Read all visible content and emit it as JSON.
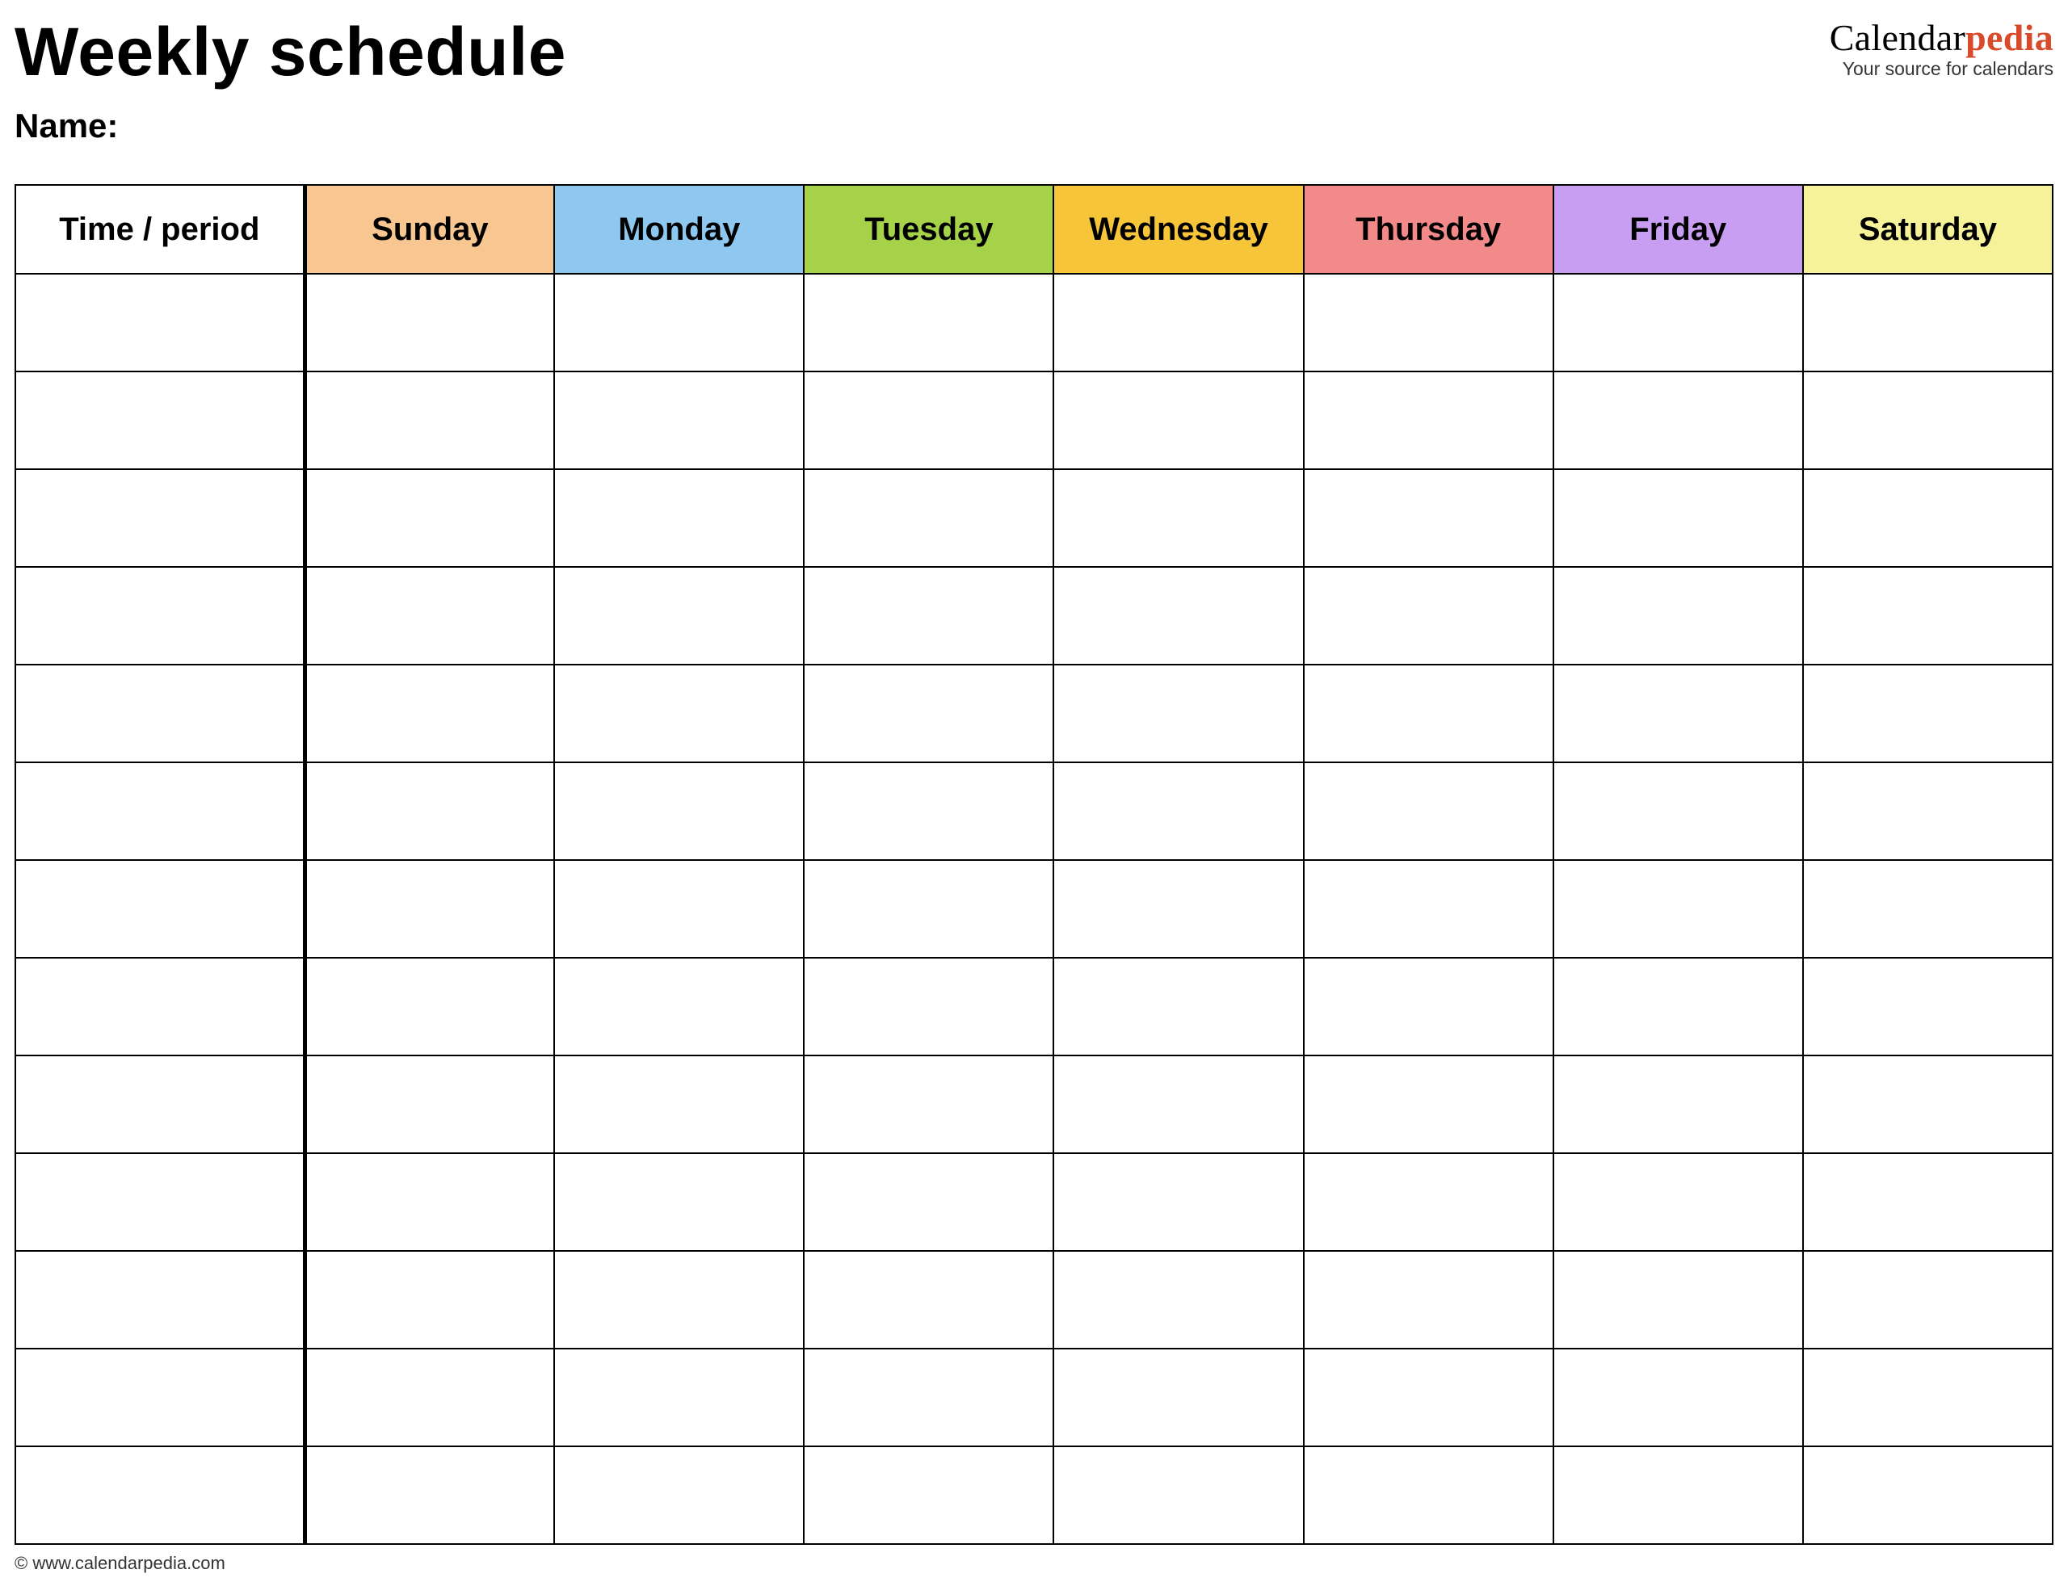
{
  "header": {
    "title": "Weekly schedule",
    "name_label": "Name:",
    "brand_part1": "Calendar",
    "brand_part2": "pedia",
    "brand_tagline": "Your source for calendars"
  },
  "table": {
    "type": "table",
    "num_body_rows": 13,
    "columns": [
      {
        "label": "Time / period",
        "bg": "#ffffff"
      },
      {
        "label": "Sunday",
        "bg": "#f8c690"
      },
      {
        "label": "Monday",
        "bg": "#8ec8f0"
      },
      {
        "label": "Tuesday",
        "bg": "#a6d24a"
      },
      {
        "label": "Wednesday",
        "bg": "#f7c53a"
      },
      {
        "label": "Thursday",
        "bg": "#f28a8a"
      },
      {
        "label": "Friday",
        "bg": "#c89ef2"
      },
      {
        "label": "Saturday",
        "bg": "#f6f29a"
      }
    ],
    "border_color": "#000000",
    "background_color": "#ffffff",
    "header_fontsize": 40,
    "first_col_border_right_width": 5
  },
  "footer": {
    "text": "© www.calendarpedia.com"
  }
}
